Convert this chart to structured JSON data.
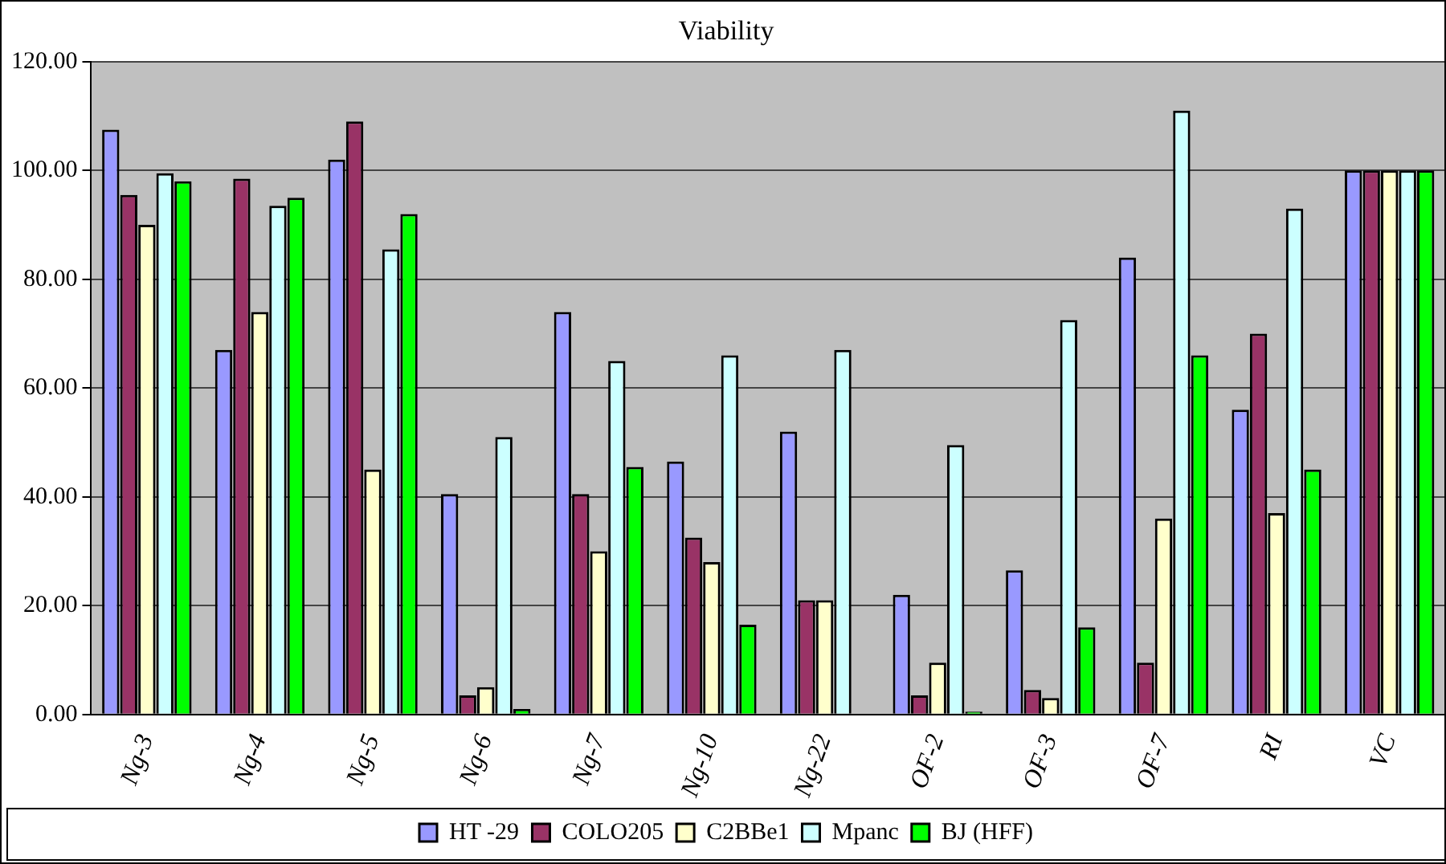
{
  "chart_data": {
    "type": "bar",
    "title": "Viability",
    "categories": [
      "Ng-3",
      "Ng-4",
      "Ng-5",
      "Ng-6",
      "Ng-7",
      "Ng-10",
      "Ng-22",
      "OF-2",
      "OF-3",
      "OF-7",
      "RI",
      "VC"
    ],
    "series": [
      {
        "name": "HT -29",
        "color": "#9999ff",
        "values": [
          107.5,
          67,
          102,
          40.5,
          74,
          46.5,
          52,
          22,
          26.5,
          84,
          56,
          100
        ]
      },
      {
        "name": "COLO205",
        "color": "#993366",
        "values": [
          95.5,
          98.5,
          109,
          3.5,
          40.5,
          32.5,
          21,
          3.5,
          4.5,
          9.5,
          70,
          100
        ]
      },
      {
        "name": "C2BBe1",
        "color": "#ffffcc",
        "values": [
          90,
          74,
          45,
          5,
          30,
          28,
          21,
          9.5,
          3,
          36,
          37,
          100
        ]
      },
      {
        "name": "Mpanc",
        "color": "#ccffff",
        "values": [
          99.5,
          93.5,
          85.5,
          51,
          65,
          66,
          67,
          49.5,
          72.5,
          111,
          93,
          100
        ]
      },
      {
        "name": "BJ (HFF)",
        "color": "#00ff00",
        "values": [
          98,
          95,
          92,
          1,
          45.5,
          16.5,
          0,
          0.5,
          16,
          66,
          45,
          100
        ]
      }
    ],
    "ylim": [
      0,
      120
    ],
    "yticks": [
      {
        "value": 0,
        "label": "0.00"
      },
      {
        "value": 20,
        "label": "20.00"
      },
      {
        "value": 40,
        "label": "40.00"
      },
      {
        "value": 60,
        "label": "60.00"
      },
      {
        "value": 80,
        "label": "80.00"
      },
      {
        "value": 100,
        "label": "100.00"
      },
      {
        "value": 120,
        "label": "120.00"
      }
    ],
    "grid": "y",
    "legend": "bottom"
  }
}
